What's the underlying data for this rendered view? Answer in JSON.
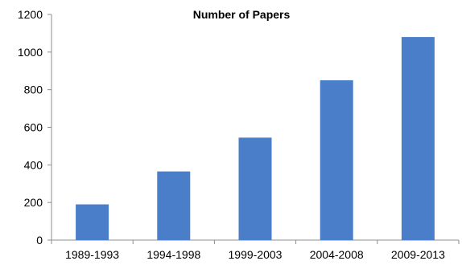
{
  "chart_data": {
    "type": "bar",
    "title": "Number of Papers",
    "xlabel": "",
    "ylabel": "",
    "categories": [
      "1989-1993",
      "1994-1998",
      "1999-2003",
      "2004-2008",
      "2009-2013"
    ],
    "values": [
      190,
      365,
      545,
      850,
      1080
    ],
    "ylim": [
      0,
      1200
    ],
    "yticks": [
      0,
      200,
      400,
      600,
      800,
      1000,
      1200
    ],
    "ytick_labels": [
      "0",
      "200",
      "400",
      "600",
      "800",
      "1000",
      "1200"
    ],
    "grid": false,
    "legend": "none",
    "bar_color": "#4a7ec9",
    "axis_color": "#8c8c8c"
  }
}
